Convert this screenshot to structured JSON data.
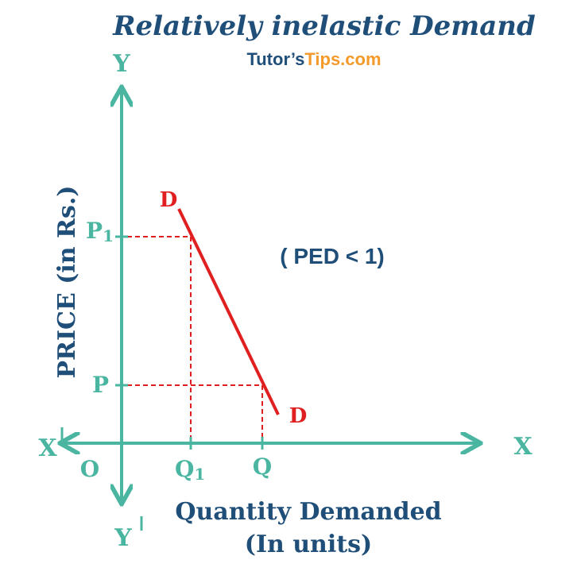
{
  "header": {
    "title": "Relatively inelastic Demand",
    "brand": {
      "first": "Tutor’s",
      "second": "Tips.com"
    }
  },
  "axes": {
    "y_top": "Y",
    "y_bottom": "Y",
    "x_right": "X",
    "x_left": "X",
    "origin": "O",
    "y_label": "PRICE (in Rs.)",
    "x_label": {
      "line1": "Quantity Demanded",
      "line2": "(In units)"
    }
  },
  "points": {
    "p1": {
      "base": "P",
      "sub": "1"
    },
    "p": "P",
    "q1": {
      "base": "Q",
      "sub": "1"
    },
    "q": "Q"
  },
  "curve": {
    "top_label": "D",
    "bottom_label": "D"
  },
  "annotation": "( PED < 1)"
}
